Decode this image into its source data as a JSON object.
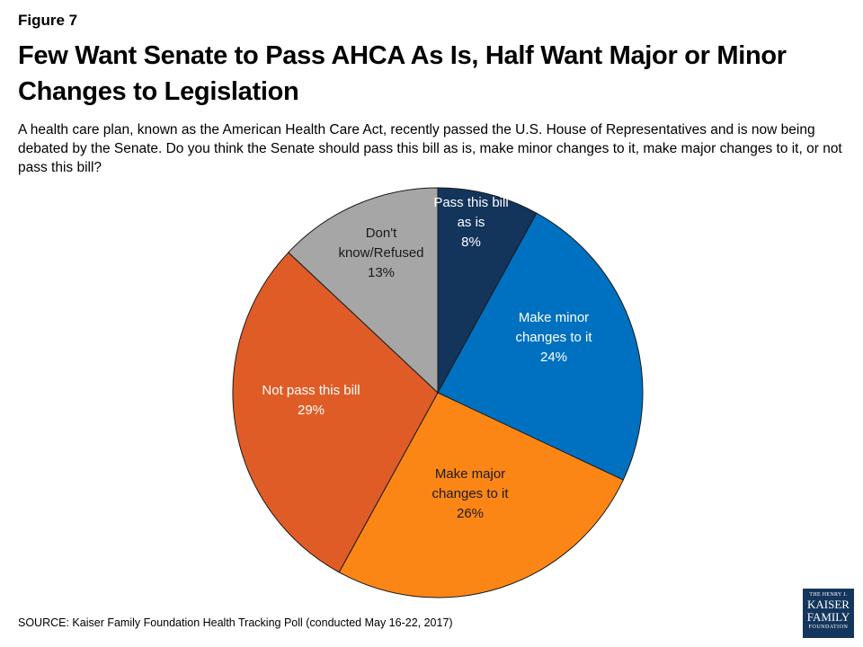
{
  "figure_label": "Figure 7",
  "header": {
    "title": "Few Want Senate to Pass AHCA As Is, Half Want Major or Minor Changes to Legislation",
    "subtitle": "A health care plan, known as the American Health Care Act, recently passed the U.S. House of Representatives and is now being debated by the Senate. Do you think the Senate should pass this bill as is, make minor changes to it, make major changes to it, or not pass this bill?"
  },
  "chart_data": {
    "type": "pie",
    "start_angle_deg": 0,
    "direction": "clockwise",
    "slices": [
      {
        "label_lines": [
          "Pass this bill",
          "as is"
        ],
        "value": 8,
        "value_label": "8%",
        "color": "#13345b",
        "label_color": "#ffffff"
      },
      {
        "label_lines": [
          "Make minor",
          "changes to it"
        ],
        "value": 24,
        "value_label": "24%",
        "color": "#0071c0",
        "label_color": "#ffffff"
      },
      {
        "label_lines": [
          "Make major",
          "changes to it"
        ],
        "value": 26,
        "value_label": "26%",
        "color": "#fb8616",
        "label_color": "#1a1a1a"
      },
      {
        "label_lines": [
          "Not pass this bill"
        ],
        "value": 29,
        "value_label": "29%",
        "color": "#e05c27",
        "label_color": "#ffffff"
      },
      {
        "label_lines": [
          "Don't",
          "know/Refused"
        ],
        "value": 13,
        "value_label": "13%",
        "color": "#a6a6a6",
        "label_color": "#1a1a1a"
      }
    ]
  },
  "footer": {
    "source": "SOURCE: Kaiser Family Foundation Health Tracking Poll (conducted May 16-22, 2017)"
  },
  "logo": {
    "line1": "THE HENRY J.",
    "line2": "KAISER",
    "line3": "FAMILY",
    "line4": "FOUNDATION"
  }
}
